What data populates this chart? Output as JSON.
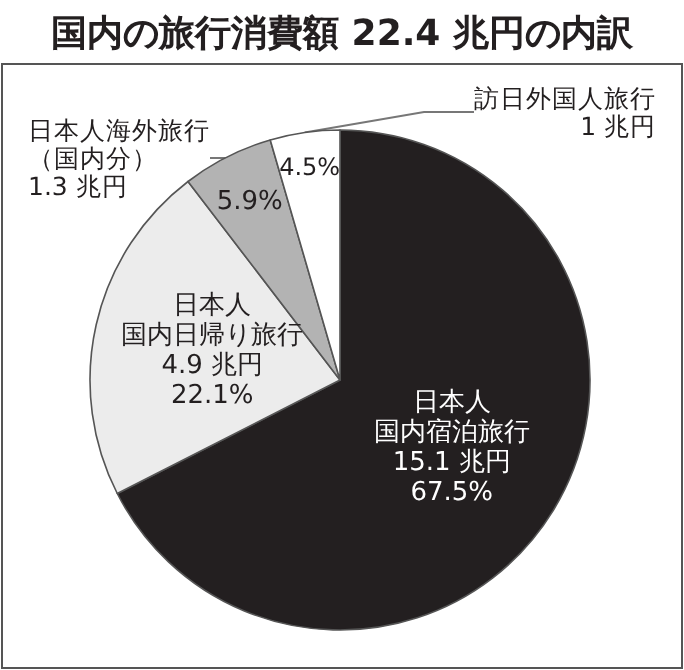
{
  "chart_data": {
    "type": "pie",
    "title": "国内の旅行消費額 22.4 兆円の内訳",
    "categories": [
      "日本人国内宿泊旅行",
      "日本人国内日帰り旅行",
      "日本人海外旅行（国内分）",
      "訪日外国人旅行"
    ],
    "values": [
      67.5,
      22.1,
      5.9,
      4.5
    ],
    "value_labels": [
      "67.5%",
      "22.1%",
      "5.9%",
      "4.5%"
    ],
    "annotations": [
      "15.1 兆円",
      "4.9 兆円",
      "1.3 兆円",
      "1 兆円"
    ],
    "colors": [
      "#231f20",
      "#ececec",
      "#b3b3b3",
      "#ffffff"
    ],
    "legend": false
  }
}
